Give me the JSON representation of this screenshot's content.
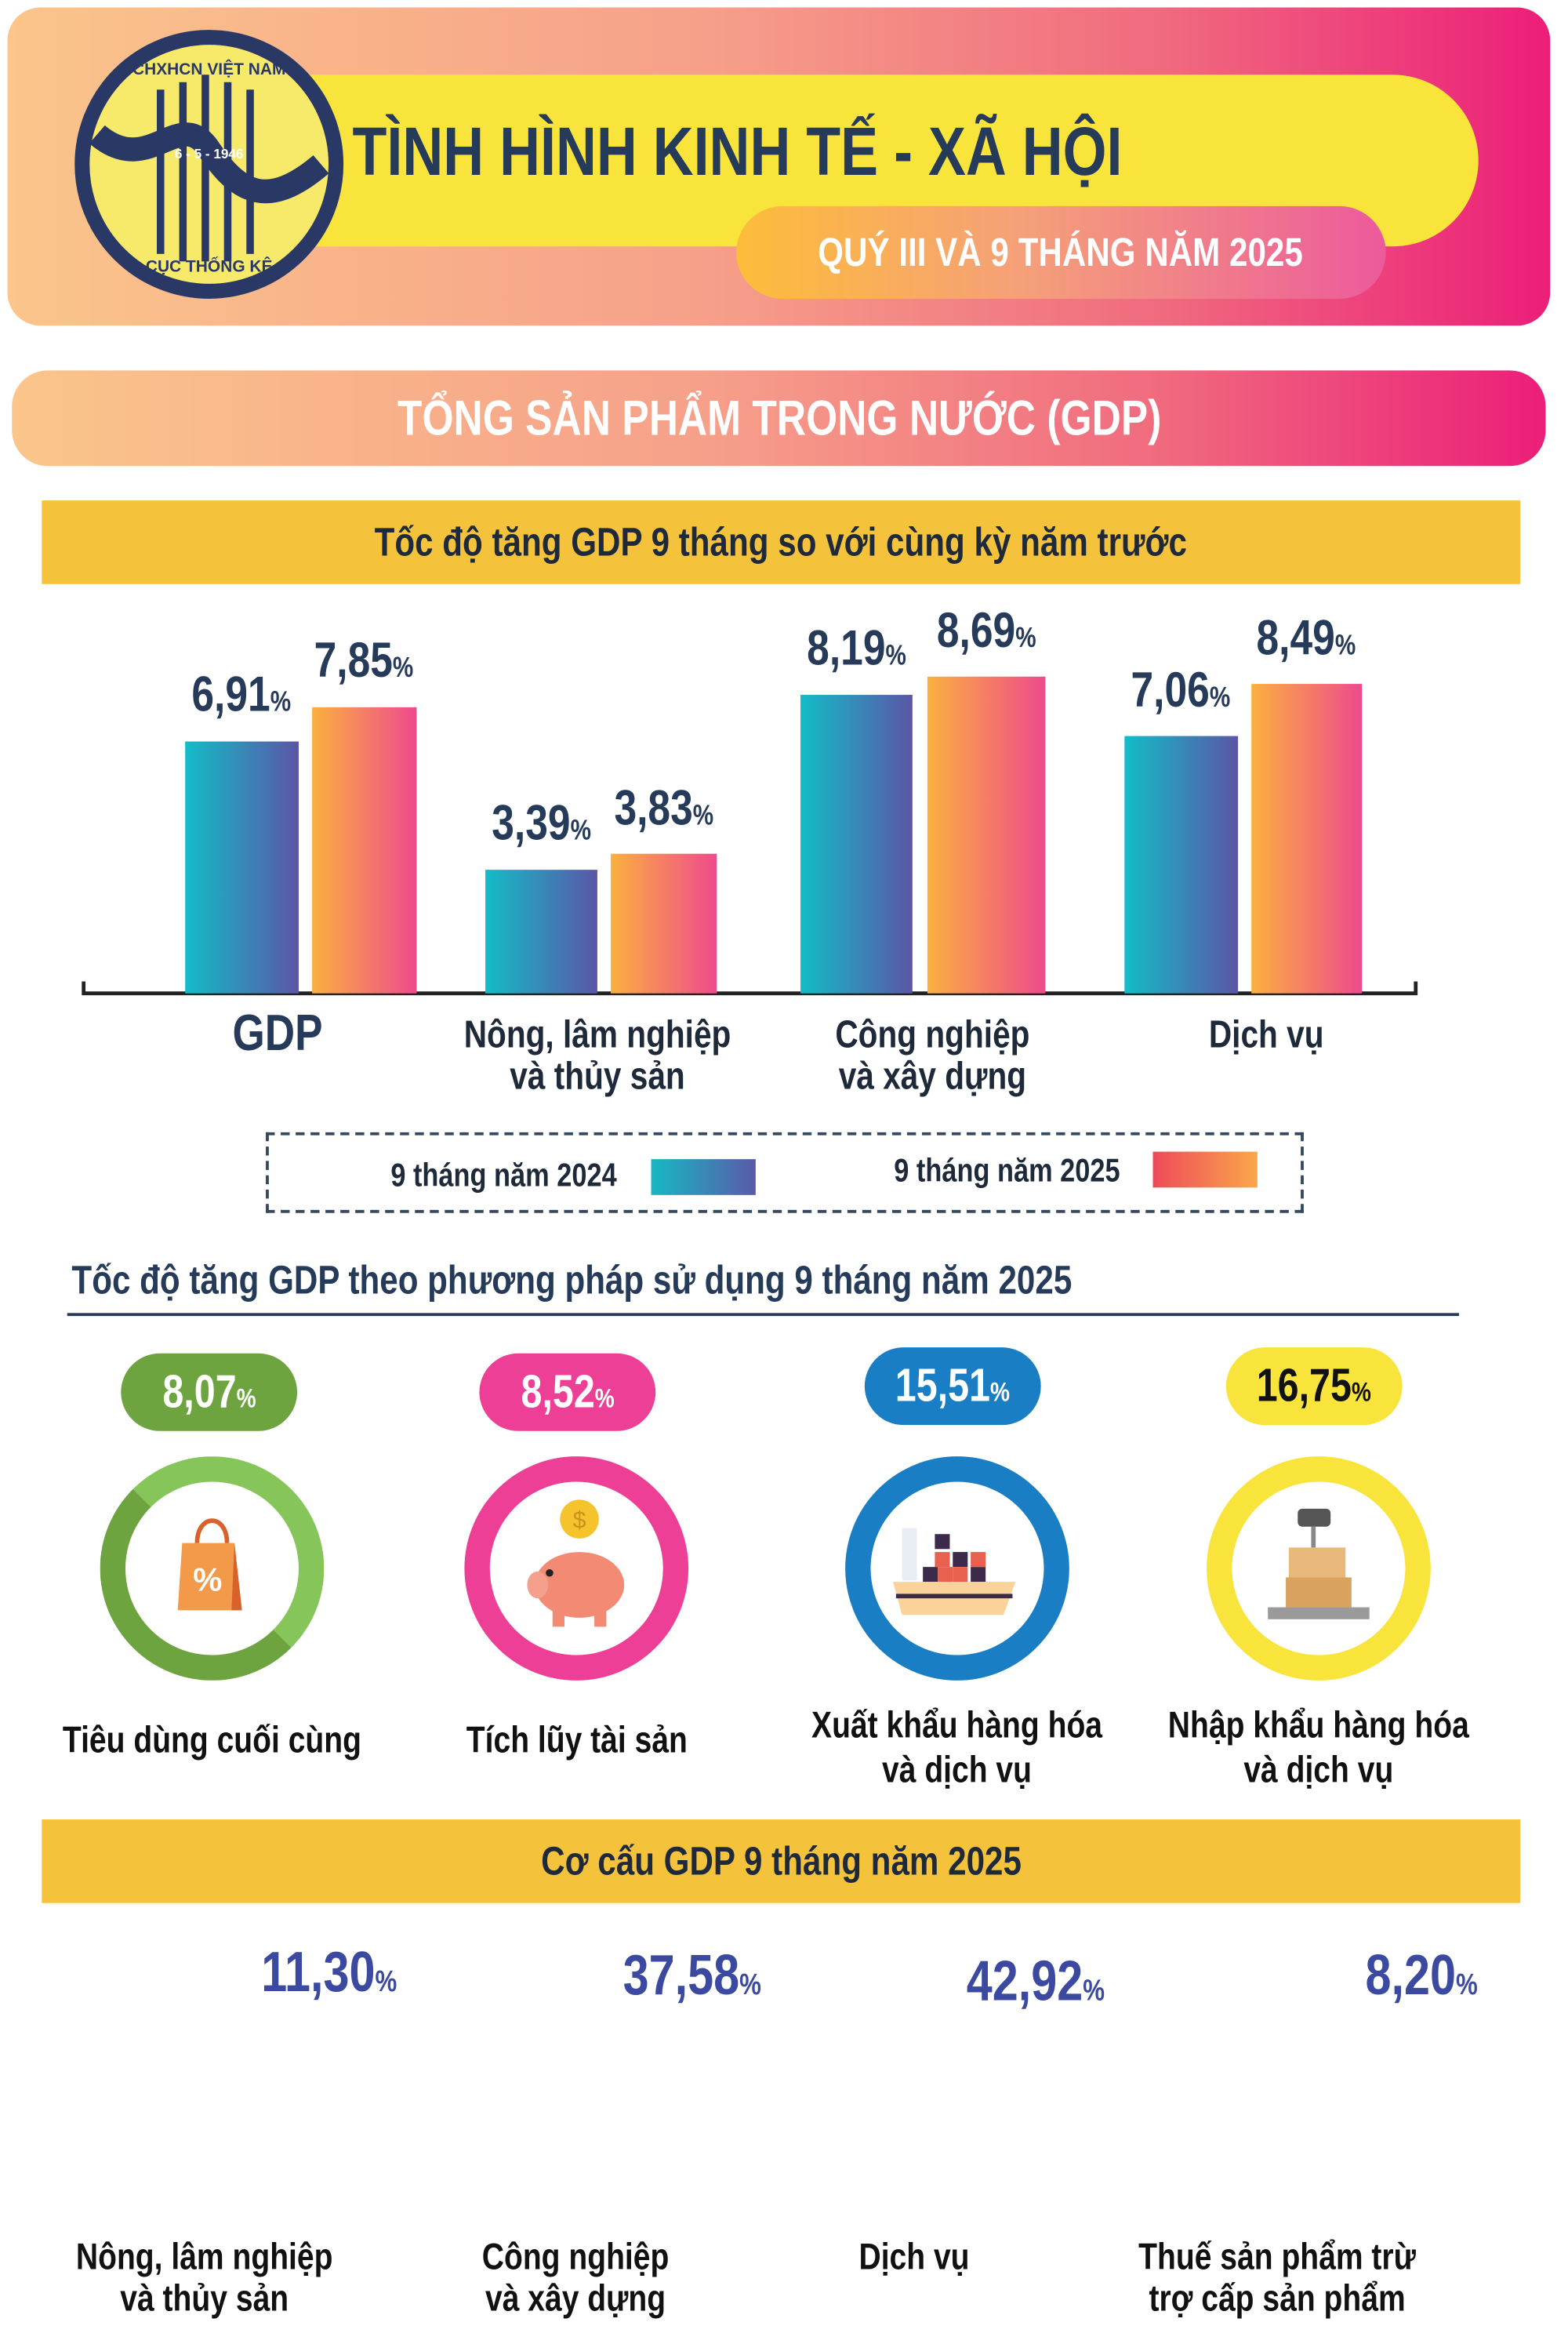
{
  "header": {
    "title": "TÌNH HÌNH KINH TẾ - XÃ HỘI",
    "subtitle": "QUÝ III VÀ 9 THÁNG NĂM 2025",
    "logo_text": [
      "CHXHCN VIỆT NAM",
      "6 - 5 - 1946",
      "CỤC THỐNG KÊ"
    ]
  },
  "section_banner": "TỔNG SẢN PHẨM TRONG NƯỚC (GDP)",
  "colors": {
    "navy": "#263a5a",
    "yellow": "#f9e43c",
    "gold": "#f5c33b",
    "green": "#6ea43f",
    "pink": "#ee3f96",
    "blue": "#1a7ec4",
    "gray": "#b3b6b5"
  },
  "chart_data": [
    {
      "type": "bar",
      "title": "Tốc độ tăng GDP 9 tháng so với cùng kỳ năm trước",
      "unit": "%",
      "categories": [
        "GDP",
        "Nông, lâm nghiệp\nvà thủy sản",
        "Công nghiệp\nvà xây dựng",
        "Dịch vụ"
      ],
      "series": [
        {
          "name": "9 tháng năm 2024",
          "values": [
            6.91,
            3.39,
            8.19,
            7.06
          ],
          "labels": [
            "6,91",
            "3,39",
            "8,19",
            "7,06"
          ]
        },
        {
          "name": "9 tháng năm 2025",
          "values": [
            7.85,
            3.83,
            8.69,
            8.49
          ],
          "labels": [
            "7,85",
            "3,83",
            "8,69",
            "8,49"
          ]
        }
      ],
      "ylim": [
        0,
        10
      ],
      "legend": "bottom"
    },
    {
      "type": "pie",
      "title": "Cơ cấu GDP 9 tháng năm 2025",
      "unit": "%",
      "items": [
        {
          "name": "Nông, lâm nghiệp\nvà thủy sản",
          "value": 11.3,
          "label": "11,30",
          "color": "#2c8f3d"
        },
        {
          "name": "Công nghiệp\nvà xây dựng",
          "value": 37.58,
          "label": "37,58",
          "color": "#f9e43c"
        },
        {
          "name": "Dịch vụ",
          "value": 42.92,
          "label": "42,92",
          "color": "#ee3f96"
        },
        {
          "name": "Thuế sản phẩm trừ\ntrợ cấp sản phẩm",
          "value": 8.2,
          "label": "8,20",
          "color": "#1a7ec4"
        }
      ]
    }
  ],
  "expenditure": {
    "title": "Tốc độ tăng GDP theo phương pháp sử dụng 9 tháng năm 2025",
    "items": [
      {
        "label": "Tiêu dùng cuối cùng",
        "value": "8,07",
        "color": "#6ea43f",
        "icon": "shopping-bag-icon"
      },
      {
        "label": "Tích lũy tài sản",
        "value": "8,52",
        "color": "#ee3f96",
        "icon": "piggy-bank-icon"
      },
      {
        "label": "Xuất khẩu hàng hóa\nvà dịch vụ",
        "value": "15,51",
        "color": "#1a7ec4",
        "icon": "cargo-ship-icon"
      },
      {
        "label": "Nhập khẩu hàng hóa\nvà dịch vụ",
        "value": "16,75",
        "color": "#f9e43c",
        "icon": "scale-boxes-icon"
      }
    ]
  },
  "percent": "%"
}
